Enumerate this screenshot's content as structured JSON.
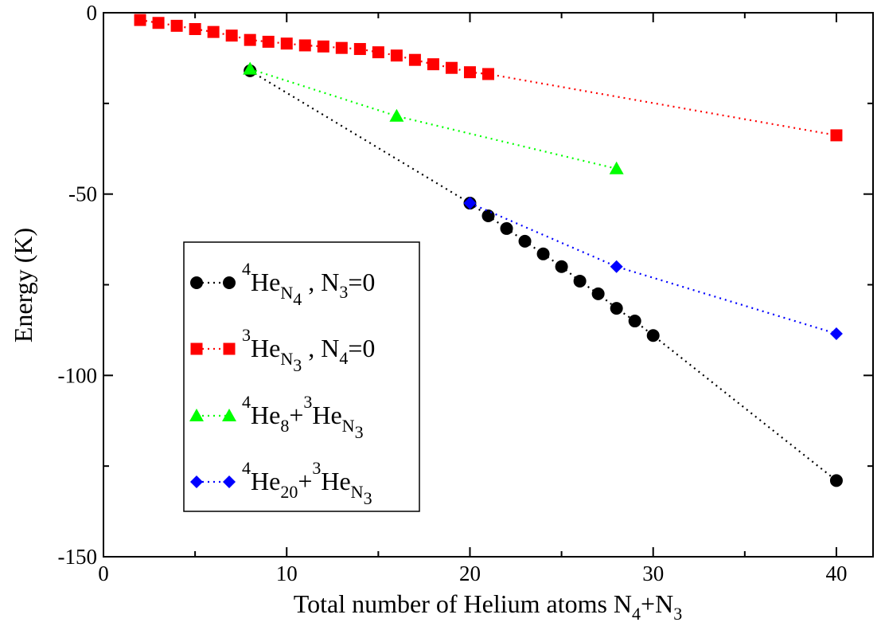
{
  "chart_data": {
    "type": "line",
    "xlabel_main": "Total number of Helium atoms N",
    "xlabel_sub1": "4",
    "xlabel_plus": "+N",
    "xlabel_sub2": "3",
    "ylabel": "Energy (K)",
    "xlim": [
      0,
      42
    ],
    "ylim": [
      -150,
      0
    ],
    "xticks": [
      0,
      10,
      20,
      30,
      40
    ],
    "xtick_labels": [
      "0",
      "10",
      "20",
      "30",
      "40"
    ],
    "yticks": [
      0,
      -50,
      -100,
      -150
    ],
    "ytick_labels": [
      "0",
      "-50",
      "-100",
      "-150"
    ],
    "grid": false,
    "legend_position": "lower-left",
    "series": [
      {
        "color": "#000000",
        "marker": "circle",
        "legend": {
          "sup1": "4",
          "base1": "He",
          "sub1": "N",
          "subsub1": "4",
          "tail": " , N",
          "tail_sub": "3",
          "tail_end": "=0"
        },
        "points": [
          [
            8,
            -16
          ],
          [
            20,
            -52.5
          ],
          [
            21,
            -56
          ],
          [
            22,
            -59.5
          ],
          [
            23,
            -63
          ],
          [
            24,
            -66.5
          ],
          [
            25,
            -70
          ],
          [
            26,
            -74
          ],
          [
            27,
            -77.5
          ],
          [
            28,
            -81.5
          ],
          [
            29,
            -85
          ],
          [
            30,
            -89
          ],
          [
            40,
            -129
          ]
        ]
      },
      {
        "color": "#ff0000",
        "marker": "square",
        "legend": {
          "sup1": "3",
          "base1": "He",
          "sub1": "N",
          "subsub1": "3",
          "tail": " , N",
          "tail_sub": "4",
          "tail_end": "=0"
        },
        "points": [
          [
            2,
            -2
          ],
          [
            3,
            -2.8
          ],
          [
            4,
            -3.6
          ],
          [
            5,
            -4.5
          ],
          [
            6,
            -5.3
          ],
          [
            7,
            -6.3
          ],
          [
            8,
            -7.5
          ],
          [
            9,
            -8
          ],
          [
            10,
            -8.5
          ],
          [
            11,
            -9
          ],
          [
            12,
            -9.3
          ],
          [
            13,
            -9.7
          ],
          [
            14,
            -10
          ],
          [
            15,
            -10.9
          ],
          [
            16,
            -11.8
          ],
          [
            17,
            -13
          ],
          [
            18,
            -14.2
          ],
          [
            19,
            -15.2
          ],
          [
            20,
            -16.4
          ],
          [
            21,
            -16.9
          ],
          [
            40,
            -33.8
          ]
        ]
      },
      {
        "color": "#00ff00",
        "marker": "triangle",
        "legend": {
          "sup1": "4",
          "base1": "He",
          "sub1": "8",
          "plus": "+",
          "sup2": "3",
          "base2": "He",
          "sub2": "N",
          "subsub2": "3"
        },
        "points": [
          [
            8,
            -15.5
          ],
          [
            16,
            -28.5
          ],
          [
            28,
            -43
          ]
        ]
      },
      {
        "color": "#0000ff",
        "marker": "diamond",
        "legend": {
          "sup1": "4",
          "base1": "He",
          "sub1": "20",
          "plus": "+",
          "sup2": "3",
          "base2": "He",
          "sub2": "N",
          "subsub2": "3"
        },
        "points": [
          [
            20,
            -52.5
          ],
          [
            28,
            -70
          ],
          [
            40,
            -88.5
          ]
        ]
      }
    ]
  }
}
